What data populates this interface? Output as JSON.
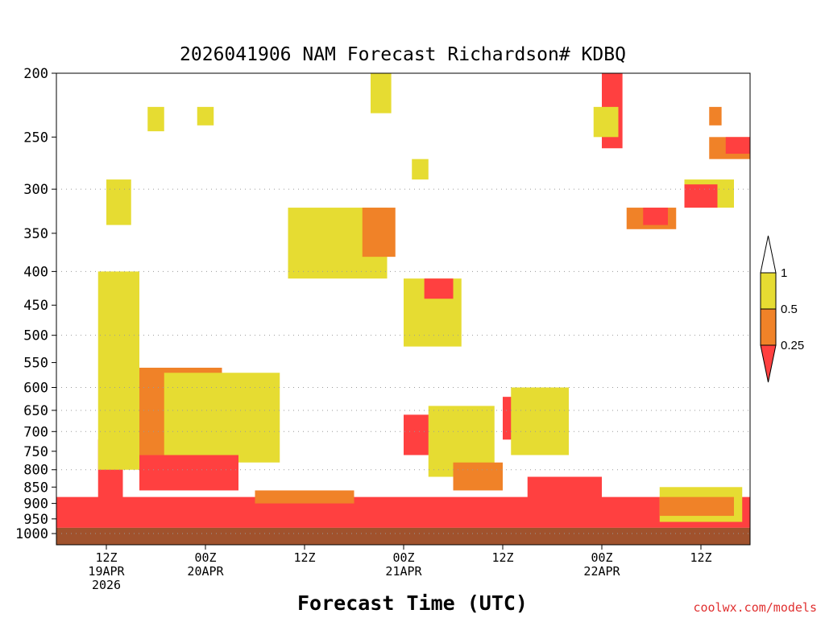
{
  "chart_data": {
    "type": "heatmap",
    "title": "2026041906 NAM Forecast Richardson# KDBQ",
    "xlabel": "Forecast Time (UTC)",
    "ylabel": "",
    "y_scale": "log",
    "y_direction": "reversed",
    "y_unit_implied": "pressure (hPa)",
    "ylim": [
      1000,
      200
    ],
    "xlim_hours_from_init": [
      0,
      84
    ],
    "y_ticks": [
      200,
      250,
      300,
      350,
      400,
      450,
      500,
      550,
      600,
      650,
      700,
      750,
      800,
      850,
      900,
      950,
      1000
    ],
    "gridlines": [
      300,
      400,
      500,
      600,
      650,
      700,
      800,
      1000
    ],
    "grid": "dotted horizontal",
    "x_ticks": [
      {
        "hour": 6,
        "lines": [
          "12Z",
          "19APR",
          "2026"
        ]
      },
      {
        "hour": 18,
        "lines": [
          "00Z",
          "20APR"
        ]
      },
      {
        "hour": 30,
        "lines": [
          "12Z"
        ]
      },
      {
        "hour": 42,
        "lines": [
          "00Z",
          "21APR"
        ]
      },
      {
        "hour": 54,
        "lines": [
          "12Z"
        ]
      },
      {
        "hour": 66,
        "lines": [
          "00Z",
          "22APR"
        ]
      },
      {
        "hour": 78,
        "lines": [
          "12Z"
        ]
      }
    ],
    "legend": {
      "placement": "right",
      "labels": [
        "1",
        "0.5",
        "0.25"
      ],
      "bins": [
        {
          "range": "<0.25",
          "color": "#ff4040"
        },
        {
          "range": "0.25-0.5",
          "color": "#f08228"
        },
        {
          "range": "0.5-1",
          "color": "#e6dc32"
        },
        {
          "range": ">1",
          "color": "#ffffff"
        }
      ]
    },
    "ground_color": "#a0522d",
    "ground_top_hpa": 980,
    "regions": [
      {
        "class": 1,
        "from_hour": 5,
        "to_hour": 8,
        "top": 720,
        "bottom": 975
      },
      {
        "class": 2,
        "from_hour": 6,
        "to_hour": 10,
        "top": 410,
        "bottom": 720
      },
      {
        "class": 1,
        "from_hour": 6.5,
        "to_hour": 8.5,
        "top": 420,
        "bottom": 560
      },
      {
        "class": 3,
        "from_hour": 5,
        "to_hour": 10,
        "top": 400,
        "bottom": 800
      },
      {
        "class": 2,
        "from_hour": 10,
        "to_hour": 20,
        "top": 560,
        "bottom": 760
      },
      {
        "class": 3,
        "from_hour": 13,
        "to_hour": 27,
        "top": 570,
        "bottom": 780
      },
      {
        "class": 1,
        "from_hour": 10,
        "to_hour": 22,
        "top": 760,
        "bottom": 860
      },
      {
        "class": 1,
        "from_hour": 0,
        "to_hour": 84,
        "top": 880,
        "bottom": 980
      },
      {
        "class": 2,
        "from_hour": 24,
        "to_hour": 36,
        "top": 860,
        "bottom": 900
      },
      {
        "class": 1,
        "from_hour": 42,
        "to_hour": 48,
        "top": 660,
        "bottom": 760
      },
      {
        "class": 3,
        "from_hour": 45,
        "to_hour": 53,
        "top": 640,
        "bottom": 820
      },
      {
        "class": 2,
        "from_hour": 48,
        "to_hour": 54,
        "top": 780,
        "bottom": 860
      },
      {
        "class": 1,
        "from_hour": 54,
        "to_hour": 61,
        "top": 620,
        "bottom": 720
      },
      {
        "class": 3,
        "from_hour": 55,
        "to_hour": 62,
        "top": 600,
        "bottom": 760
      },
      {
        "class": 1,
        "from_hour": 57,
        "to_hour": 66,
        "top": 820,
        "bottom": 900
      },
      {
        "class": 3,
        "from_hour": 73,
        "to_hour": 83,
        "top": 850,
        "bottom": 960
      },
      {
        "class": 2,
        "from_hour": 73,
        "to_hour": 82,
        "top": 880,
        "bottom": 940
      },
      {
        "class": 3,
        "from_hour": 28,
        "to_hour": 40,
        "top": 320,
        "bottom": 410
      },
      {
        "class": 2,
        "from_hour": 37,
        "to_hour": 41,
        "top": 320,
        "bottom": 380
      },
      {
        "class": 3,
        "from_hour": 42,
        "to_hour": 49,
        "top": 410,
        "bottom": 520
      },
      {
        "class": 1,
        "from_hour": 44.5,
        "to_hour": 48,
        "top": 410,
        "bottom": 440
      },
      {
        "class": 3,
        "from_hour": 38,
        "to_hour": 40.5,
        "top": 200,
        "bottom": 230
      },
      {
        "class": 1,
        "from_hour": 66,
        "to_hour": 68.5,
        "top": 200,
        "bottom": 260
      },
      {
        "class": 3,
        "from_hour": 65,
        "to_hour": 68,
        "top": 225,
        "bottom": 250
      },
      {
        "class": 2,
        "from_hour": 69,
        "to_hour": 75,
        "top": 320,
        "bottom": 345
      },
      {
        "class": 1,
        "from_hour": 71,
        "to_hour": 74,
        "top": 320,
        "bottom": 340
      },
      {
        "class": 3,
        "from_hour": 76,
        "to_hour": 82,
        "top": 290,
        "bottom": 320
      },
      {
        "class": 1,
        "from_hour": 76,
        "to_hour": 80,
        "top": 295,
        "bottom": 320
      },
      {
        "class": 2,
        "from_hour": 79,
        "to_hour": 84,
        "top": 250,
        "bottom": 270
      },
      {
        "class": 1,
        "from_hour": 81,
        "to_hour": 84,
        "top": 250,
        "bottom": 265
      },
      {
        "class": 2,
        "from_hour": 79,
        "to_hour": 80.5,
        "top": 225,
        "bottom": 240
      },
      {
        "class": 3,
        "from_hour": 11,
        "to_hour": 13,
        "top": 225,
        "bottom": 245
      },
      {
        "class": 3,
        "from_hour": 17,
        "to_hour": 19,
        "top": 225,
        "bottom": 240
      },
      {
        "class": 3,
        "from_hour": 43,
        "to_hour": 45,
        "top": 270,
        "bottom": 290
      },
      {
        "class": 3,
        "from_hour": 6,
        "to_hour": 9,
        "top": 290,
        "bottom": 340
      }
    ]
  },
  "credit": "coolwx.com/models"
}
